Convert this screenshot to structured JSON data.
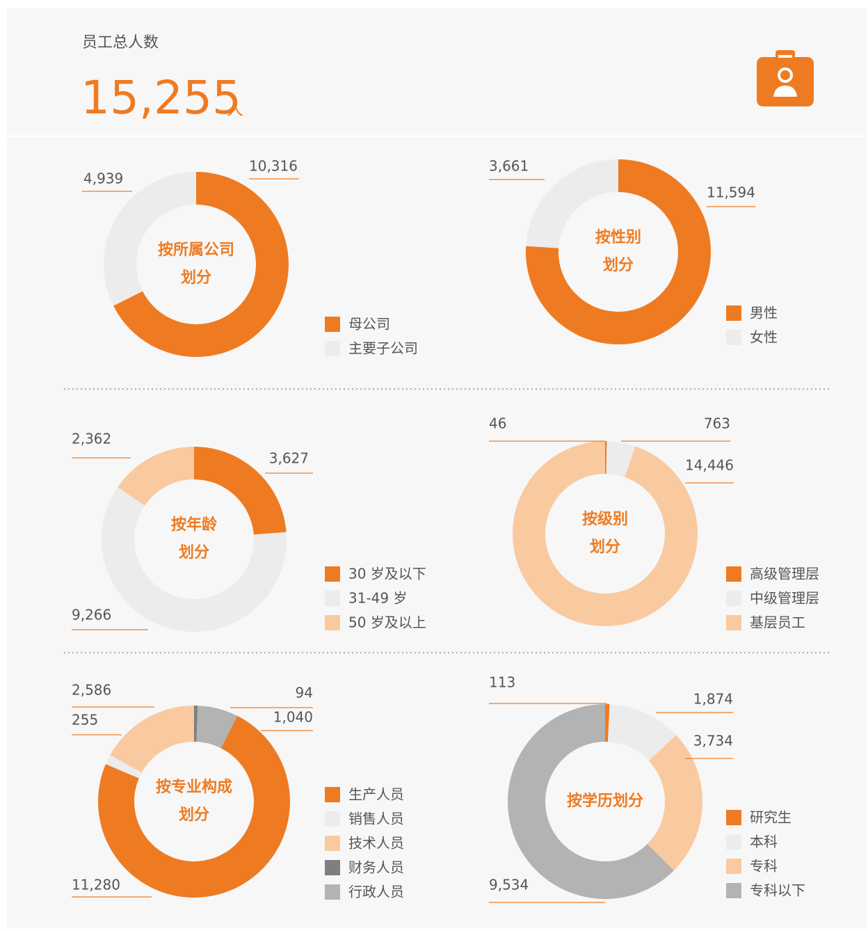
{
  "header": {
    "title": "员工总人数",
    "total": "15,255",
    "unit": "人"
  },
  "chart_data": [
    {
      "type": "pie",
      "title": "按所属公司\n划分",
      "categories": [
        "母公司",
        "主要子公司"
      ],
      "values": [
        10316,
        4939
      ],
      "value_labels": [
        "10,316",
        "4,939"
      ],
      "colors": [
        "#ee7b22",
        "#ececec"
      ]
    },
    {
      "type": "pie",
      "title": "按性别\n划分",
      "categories": [
        "男性",
        "女性"
      ],
      "values": [
        11594,
        3661
      ],
      "value_labels": [
        "11,594",
        "3,661"
      ],
      "colors": [
        "#ee7b22",
        "#ececec"
      ]
    },
    {
      "type": "pie",
      "title": "按年龄\n划分",
      "categories": [
        "30 岁及以下",
        "31-49 岁",
        "50 岁及以上"
      ],
      "values": [
        3627,
        9266,
        2362
      ],
      "value_labels": [
        "3,627",
        "9,266",
        "2,362"
      ],
      "colors": [
        "#ee7b22",
        "#ececec",
        "#f9caa0"
      ]
    },
    {
      "type": "pie",
      "title": "按级别\n划分",
      "categories": [
        "高级管理层",
        "中级管理层",
        "基层员工"
      ],
      "values": [
        46,
        763,
        14446
      ],
      "value_labels": [
        "46",
        "763",
        "14,446"
      ],
      "colors": [
        "#ee7b22",
        "#ececec",
        "#f9caa0"
      ]
    },
    {
      "type": "pie",
      "title": "按专业构成\n划分",
      "categories": [
        "生产人员",
        "销售人员",
        "技术人员",
        "财务人员",
        "行政人员"
      ],
      "values": [
        11280,
        255,
        2586,
        94,
        1040
      ],
      "value_labels": [
        "11,280",
        "255",
        "2,586",
        "94",
        "1,040"
      ],
      "colors": [
        "#ee7b22",
        "#ececec",
        "#f9caa0",
        "#7f7f7f",
        "#b3b3b3"
      ]
    },
    {
      "type": "pie",
      "title": "按学历划分",
      "categories": [
        "研究生",
        "本科",
        "专科",
        "专科以下"
      ],
      "values": [
        113,
        1874,
        3734,
        9534
      ],
      "value_labels": [
        "113",
        "1,874",
        "3,734",
        "9,534"
      ],
      "colors": [
        "#ee7b22",
        "#ececec",
        "#f9caa0",
        "#b3b3b3"
      ]
    }
  ]
}
